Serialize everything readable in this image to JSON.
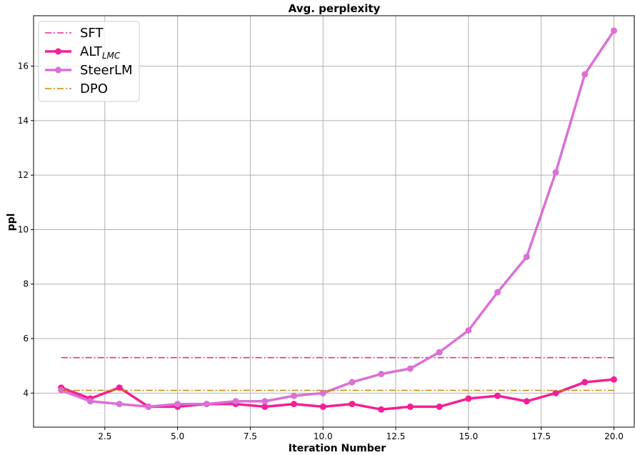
{
  "chart_data": {
    "type": "line",
    "title": "Avg. perplexity",
    "xlabel": "Iteration Number",
    "ylabel": "ppl",
    "xlim": [
      0.05,
      20.7
    ],
    "ylim": [
      2.75,
      17.85
    ],
    "xticks": [
      2.5,
      5.0,
      7.5,
      10.0,
      12.5,
      15.0,
      17.5,
      20.0
    ],
    "xtick_labels": [
      "2.5",
      "5.0",
      "7.5",
      "10.0",
      "12.5",
      "15.0",
      "17.5",
      "20.0"
    ],
    "yticks": [
      4,
      6,
      8,
      10,
      12,
      14,
      16
    ],
    "ytick_labels": [
      "4",
      "6",
      "8",
      "10",
      "12",
      "14",
      "16"
    ],
    "grid": true,
    "legend_position": "top-left",
    "x": [
      1,
      2,
      3,
      4,
      5,
      6,
      7,
      8,
      9,
      10,
      11,
      12,
      13,
      14,
      15,
      16,
      17,
      18,
      19,
      20
    ],
    "series": [
      {
        "name": "SFT",
        "legend_main": "SFT",
        "legend_sub": "",
        "style": "dashdot",
        "color": "#f0279a",
        "markers": false,
        "values": [
          5.3,
          5.3,
          5.3,
          5.3,
          5.3,
          5.3,
          5.3,
          5.3,
          5.3,
          5.3,
          5.3,
          5.3,
          5.3,
          5.3,
          5.3,
          5.3,
          5.3,
          5.3,
          5.3,
          5.3
        ]
      },
      {
        "name": "ALT_LMC",
        "legend_main": "ALT",
        "legend_sub": "LMC",
        "style": "solid",
        "color": "#f41f96",
        "markers": true,
        "values": [
          4.2,
          3.8,
          4.2,
          3.5,
          3.5,
          3.6,
          3.6,
          3.5,
          3.6,
          3.5,
          3.6,
          3.4,
          3.5,
          3.5,
          3.8,
          3.9,
          3.7,
          4.0,
          4.4,
          4.5
        ]
      },
      {
        "name": "SteerLM",
        "legend_main": "SteerLM",
        "legend_sub": "",
        "style": "solid",
        "color": "#da70d6",
        "markers": true,
        "values": [
          4.1,
          3.7,
          3.6,
          3.5,
          3.6,
          3.6,
          3.7,
          3.7,
          3.9,
          4.0,
          4.4,
          4.7,
          4.9,
          5.5,
          6.3,
          7.7,
          9.0,
          12.1,
          15.7,
          17.3
        ]
      },
      {
        "name": "DPO",
        "legend_main": "DPO",
        "legend_sub": "",
        "style": "dashdot",
        "color": "#c8860a",
        "markers": false,
        "values": [
          4.1,
          4.1,
          4.1,
          4.1,
          4.1,
          4.1,
          4.1,
          4.1,
          4.1,
          4.1,
          4.1,
          4.1,
          4.1,
          4.1,
          4.1,
          4.1,
          4.1,
          4.1,
          4.1,
          4.1
        ]
      }
    ]
  }
}
